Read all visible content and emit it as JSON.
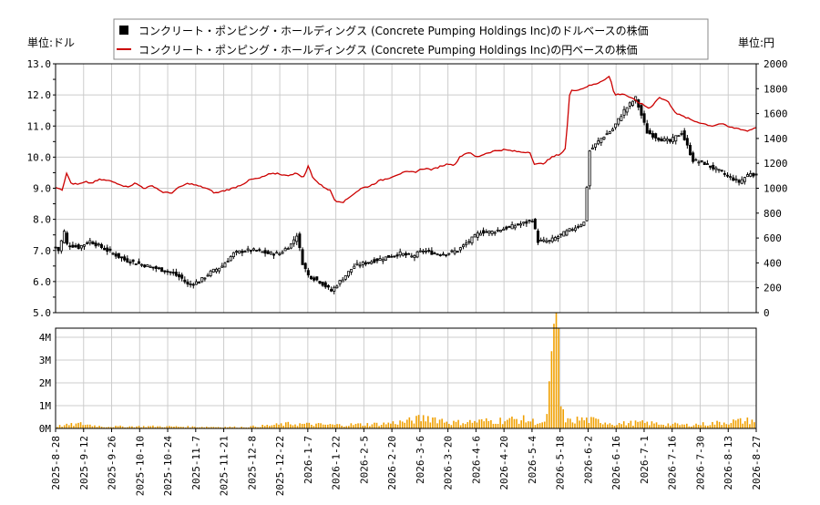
{
  "chart_data": {
    "type": "candlestick+line+bar",
    "legend": [
      {
        "label": "コンクリート・ポンピング・ホールディングス (Concrete Pumping Holdings Inc)のドルベースの株価",
        "color": "#000000",
        "marker": "square"
      },
      {
        "label": "コンクリート・ポンピング・ホールディングス (Concrete Pumping Holdings Inc)の円ベースの株価",
        "color": "#cc0000",
        "marker": "line"
      }
    ],
    "left_unit": "単位:ドル",
    "right_unit": "単位:円",
    "left_ylim": [
      5.0,
      13.0
    ],
    "left_ticks": [
      "5.0",
      "6.0",
      "7.0",
      "8.0",
      "9.0",
      "10.0",
      "11.0",
      "12.0",
      "13.0"
    ],
    "right_ylim": [
      0,
      2000
    ],
    "right_ticks": [
      "0",
      "200",
      "400",
      "600",
      "800",
      "1000",
      "1200",
      "1400",
      "1600",
      "1800",
      "2000"
    ],
    "volume_ylim": [
      0,
      4400000
    ],
    "volume_ticks": [
      "0M",
      "1M",
      "2M",
      "3M",
      "4M"
    ],
    "x_dates": [
      "2025-8-28",
      "2025-9-12",
      "2025-9-26",
      "2025-10-10",
      "2025-10-24",
      "2025-11-7",
      "2025-11-21",
      "2025-12-8",
      "2025-12-22",
      "2026-1-7",
      "2026-1-22",
      "2026-2-5",
      "2026-2-20",
      "2026-3-6",
      "2026-3-20",
      "2026-4-6",
      "2026-4-20",
      "2026-5-4",
      "2026-5-18",
      "2026-6-2",
      "2026-6-16",
      "2026-7-1",
      "2026-7-16",
      "2026-7-30",
      "2026-8-13",
      "2026-8-27"
    ],
    "usd_close_keypoints": [
      [
        0,
        7.1
      ],
      [
        1,
        7.0
      ],
      [
        3,
        7.6
      ],
      [
        4,
        7.2
      ],
      [
        8,
        7.1
      ],
      [
        12,
        7.3
      ],
      [
        16,
        7.1
      ],
      [
        20,
        6.9
      ],
      [
        24,
        6.7
      ],
      [
        28,
        6.6
      ],
      [
        32,
        6.5
      ],
      [
        36,
        6.4
      ],
      [
        40,
        6.3
      ],
      [
        44,
        6.1
      ],
      [
        46,
        5.9
      ],
      [
        50,
        6.0
      ],
      [
        54,
        6.3
      ],
      [
        58,
        6.5
      ],
      [
        62,
        6.9
      ],
      [
        66,
        7.0
      ],
      [
        70,
        7.0
      ],
      [
        74,
        6.9
      ],
      [
        78,
        6.9
      ],
      [
        82,
        7.2
      ],
      [
        84,
        7.5
      ],
      [
        86,
        6.6
      ],
      [
        88,
        6.2
      ],
      [
        92,
        6.0
      ],
      [
        96,
        5.7
      ],
      [
        100,
        6.1
      ],
      [
        104,
        6.5
      ],
      [
        108,
        6.6
      ],
      [
        112,
        6.7
      ],
      [
        116,
        6.8
      ],
      [
        120,
        6.9
      ],
      [
        124,
        6.8
      ],
      [
        128,
        7.0
      ],
      [
        132,
        6.9
      ],
      [
        136,
        6.9
      ],
      [
        140,
        7.0
      ],
      [
        144,
        7.3
      ],
      [
        148,
        7.6
      ],
      [
        152,
        7.6
      ],
      [
        156,
        7.7
      ],
      [
        160,
        7.8
      ],
      [
        164,
        7.9
      ],
      [
        166,
        8.0
      ],
      [
        168,
        7.3
      ],
      [
        172,
        7.3
      ],
      [
        176,
        7.5
      ],
      [
        180,
        7.7
      ],
      [
        184,
        7.9
      ],
      [
        186,
        10.2
      ],
      [
        190,
        10.6
      ],
      [
        194,
        10.9
      ],
      [
        198,
        11.5
      ],
      [
        202,
        11.9
      ],
      [
        206,
        10.8
      ],
      [
        210,
        10.6
      ],
      [
        214,
        10.5
      ],
      [
        218,
        10.8
      ],
      [
        222,
        9.9
      ],
      [
        226,
        9.8
      ],
      [
        230,
        9.6
      ],
      [
        234,
        9.4
      ],
      [
        238,
        9.2
      ],
      [
        242,
        9.5
      ],
      [
        244,
        9.4
      ]
    ],
    "jpy_close_keypoints": [
      [
        0,
        1010
      ],
      [
        3,
        990
      ],
      [
        5,
        1120
      ],
      [
        7,
        1040
      ],
      [
        10,
        1030
      ],
      [
        14,
        1050
      ],
      [
        16,
        1040
      ],
      [
        20,
        1070
      ],
      [
        24,
        1060
      ],
      [
        28,
        1040
      ],
      [
        32,
        1010
      ],
      [
        36,
        1040
      ],
      [
        40,
        1000
      ],
      [
        44,
        1020
      ],
      [
        48,
        970
      ],
      [
        52,
        960
      ],
      [
        56,
        1010
      ],
      [
        60,
        1040
      ],
      [
        64,
        1020
      ],
      [
        68,
        1000
      ],
      [
        72,
        960
      ],
      [
        76,
        980
      ],
      [
        80,
        1000
      ],
      [
        84,
        1030
      ],
      [
        88,
        1070
      ],
      [
        92,
        1080
      ],
      [
        96,
        1110
      ],
      [
        100,
        1120
      ],
      [
        104,
        1100
      ],
      [
        108,
        1120
      ],
      [
        112,
        1090
      ],
      [
        114,
        1180
      ],
      [
        116,
        1090
      ],
      [
        118,
        1050
      ],
      [
        120,
        1020
      ],
      [
        124,
        980
      ],
      [
        126,
        900
      ],
      [
        130,
        890
      ],
      [
        134,
        950
      ],
      [
        138,
        1000
      ],
      [
        142,
        1020
      ],
      [
        146,
        1060
      ],
      [
        150,
        1080
      ],
      [
        154,
        1110
      ],
      [
        158,
        1130
      ],
      [
        162,
        1130
      ],
      [
        166,
        1160
      ],
      [
        170,
        1150
      ],
      [
        174,
        1180
      ],
      [
        178,
        1200
      ],
      [
        180,
        1180
      ],
      [
        182,
        1250
      ],
      [
        186,
        1290
      ],
      [
        190,
        1250
      ],
      [
        194,
        1280
      ],
      [
        198,
        1300
      ],
      [
        202,
        1310
      ],
      [
        206,
        1300
      ],
      [
        210,
        1290
      ],
      [
        214,
        1290
      ],
      [
        216,
        1190
      ],
      [
        220,
        1200
      ],
      [
        224,
        1250
      ],
      [
        228,
        1280
      ],
      [
        230,
        1320
      ],
      [
        232,
        1790
      ],
      [
        236,
        1790
      ],
      [
        240,
        1820
      ],
      [
        244,
        1840
      ],
      [
        248,
        1880
      ],
      [
        250,
        1900
      ],
      [
        252,
        1750
      ],
      [
        256,
        1760
      ],
      [
        260,
        1720
      ],
      [
        264,
        1680
      ],
      [
        268,
        1640
      ],
      [
        272,
        1730
      ],
      [
        276,
        1700
      ],
      [
        280,
        1600
      ],
      [
        284,
        1570
      ],
      [
        288,
        1540
      ],
      [
        292,
        1520
      ],
      [
        296,
        1500
      ],
      [
        300,
        1520
      ],
      [
        304,
        1490
      ],
      [
        308,
        1480
      ],
      [
        312,
        1460
      ],
      [
        316,
        1490
      ]
    ],
    "volume_keypoints": [
      [
        0,
        100000
      ],
      [
        10,
        200000
      ],
      [
        20,
        80000
      ],
      [
        40,
        90000
      ],
      [
        60,
        70000
      ],
      [
        80,
        60000
      ],
      [
        90,
        120000
      ],
      [
        100,
        200000
      ],
      [
        120,
        150000
      ],
      [
        140,
        200000
      ],
      [
        150,
        300000
      ],
      [
        160,
        500000
      ],
      [
        170,
        250000
      ],
      [
        180,
        300000
      ],
      [
        190,
        350000
      ],
      [
        200,
        400000
      ],
      [
        210,
        200000
      ],
      [
        215,
        4400000
      ],
      [
        216,
        1100000
      ],
      [
        218,
        500000
      ],
      [
        220,
        300000
      ],
      [
        225,
        400000
      ],
      [
        230,
        350000
      ],
      [
        235,
        300000
      ],
      [
        240,
        200000
      ],
      [
        250,
        250000
      ],
      [
        260,
        200000
      ],
      [
        270,
        150000
      ],
      [
        280,
        200000
      ],
      [
        290,
        300000
      ],
      [
        300,
        350000
      ]
    ]
  }
}
